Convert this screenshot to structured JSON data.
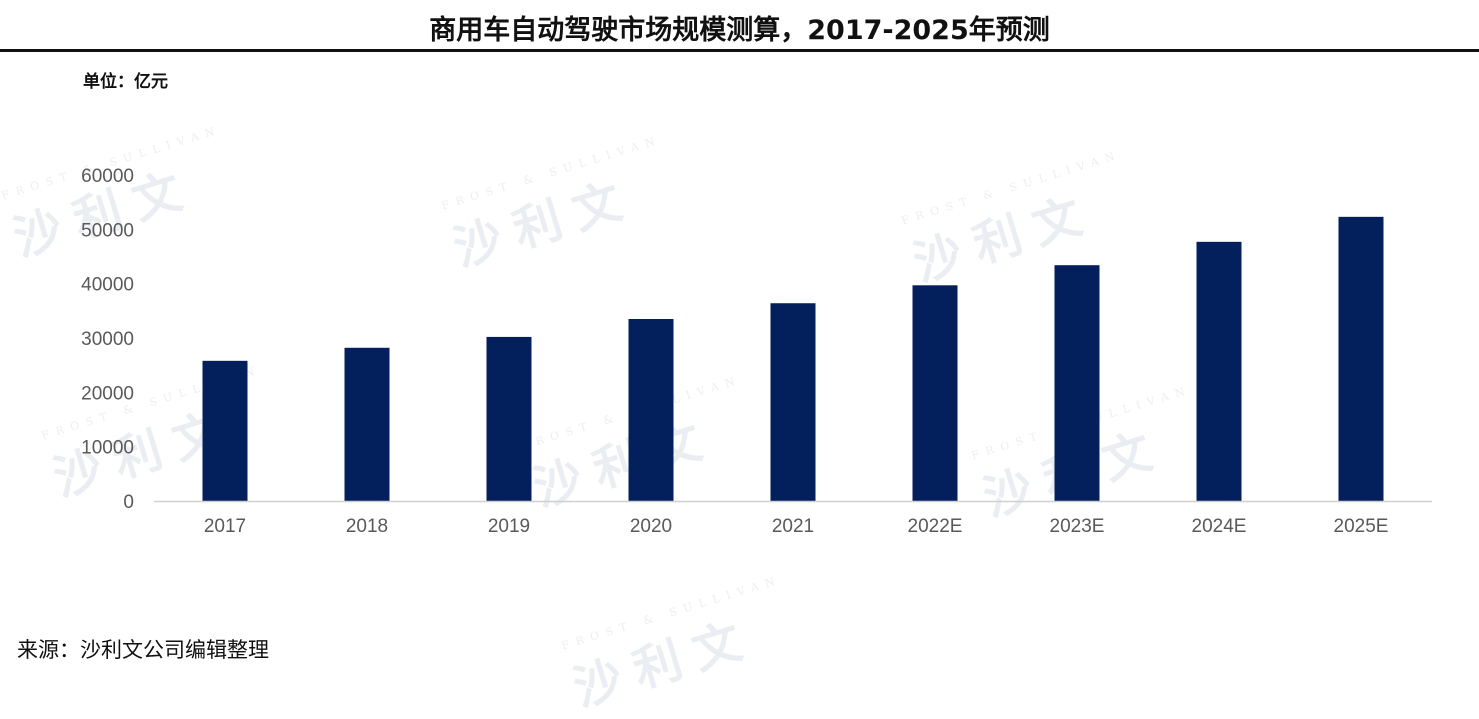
{
  "header": {
    "title": "商用车自动驾驶市场规模测算，2017-2025年预测",
    "unit_label": "单位：亿元"
  },
  "footer": {
    "source": "来源：沙利文公司编辑整理"
  },
  "watermark": {
    "english": "FROST & SULLIVAN",
    "chinese": "沙利文"
  },
  "colors": {
    "bar": "#03205C",
    "axis": "#d0d0d0",
    "tick_text": "#595959",
    "watermark": "#c5cfdc"
  },
  "chart_data": {
    "type": "bar",
    "title": "商用车自动驾驶市场规模测算，2017-2025年预测",
    "ylabel": "单位：亿元",
    "xlabel": "",
    "categories": [
      "2017",
      "2018",
      "2019",
      "2020",
      "2021",
      "2022E",
      "2023E",
      "2024E",
      "2025E"
    ],
    "values": [
      25800,
      28200,
      30200,
      33500,
      36400,
      39700,
      43400,
      47700,
      52300
    ],
    "ylim": [
      0,
      60000
    ],
    "yticks": [
      "0",
      "10000",
      "20000",
      "30000",
      "40000",
      "50000",
      "60000"
    ],
    "grid": false,
    "legend": "none"
  }
}
